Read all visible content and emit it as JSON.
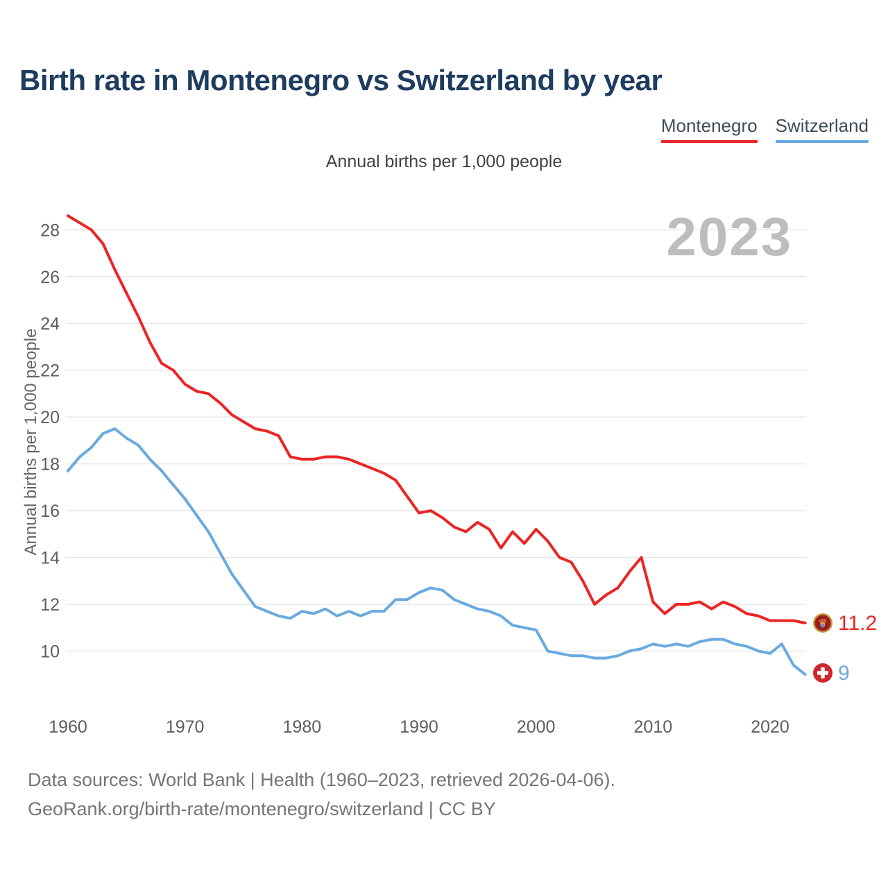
{
  "title": "Birth rate in Montenegro vs Switzerland by year",
  "subtitle": "Annual births per 1,000 people",
  "watermark": "2023",
  "legend": {
    "items": [
      {
        "label": "Montenegro",
        "color": "#ec2424"
      },
      {
        "label": "Switzerland",
        "color": "#6aaade"
      }
    ]
  },
  "y_axis": {
    "title": "Annual births per 1,000 people",
    "ticks": [
      10,
      12,
      14,
      16,
      18,
      20,
      22,
      24,
      26,
      28
    ]
  },
  "x_axis": {
    "ticks": [
      1960,
      1970,
      1980,
      1990,
      2000,
      2010,
      2020
    ]
  },
  "end_labels": {
    "montenegro": "11.2",
    "switzerland": "9"
  },
  "footer": {
    "line1": "Data sources: World Bank | Health (1960–2023, retrieved 2026-04-06).",
    "line2": "GeoRank.org/birth-rate/montenegro/switzerland | CC BY"
  },
  "colors": {
    "montenegro_line": "#ec2424",
    "switzerland_line": "#6aaade",
    "title_text": "#1d3c5e",
    "grid": "#e7e7e7",
    "watermark": "#bdbdbd",
    "montenegro_flag_gold": "#c79b3b",
    "montenegro_flag_red": "#9d1b23",
    "swiss_flag_red": "#d0262e"
  },
  "chart_data": {
    "type": "line",
    "title": "Birth rate in Montenegro vs Switzerland by year",
    "subtitle": "Annual births per 1,000 people",
    "xlabel": "",
    "ylabel": "Annual births per 1,000 people",
    "xlim": [
      1960,
      2023
    ],
    "ylim": [
      10,
      28
    ],
    "grid": true,
    "legend_position": "top-right",
    "x": [
      1960,
      1961,
      1962,
      1963,
      1964,
      1965,
      1966,
      1967,
      1968,
      1969,
      1970,
      1971,
      1972,
      1973,
      1974,
      1975,
      1976,
      1977,
      1978,
      1979,
      1980,
      1981,
      1982,
      1983,
      1984,
      1985,
      1986,
      1987,
      1988,
      1989,
      1990,
      1991,
      1992,
      1993,
      1994,
      1995,
      1996,
      1997,
      1998,
      1999,
      2000,
      2001,
      2002,
      2003,
      2004,
      2005,
      2006,
      2007,
      2008,
      2009,
      2010,
      2011,
      2012,
      2013,
      2014,
      2015,
      2016,
      2017,
      2018,
      2019,
      2020,
      2021,
      2022,
      2023
    ],
    "series": [
      {
        "name": "Montenegro",
        "color": "#ec2424",
        "end_value_label": "11.2",
        "values": [
          28.6,
          28.3,
          28.0,
          27.4,
          26.3,
          25.3,
          24.3,
          23.2,
          22.3,
          22.0,
          21.4,
          21.1,
          21.0,
          20.6,
          20.1,
          19.8,
          19.5,
          19.4,
          19.2,
          18.3,
          18.2,
          18.2,
          18.3,
          18.3,
          18.2,
          18.0,
          17.8,
          17.6,
          17.3,
          16.6,
          15.9,
          16.0,
          15.7,
          15.3,
          15.1,
          15.5,
          15.2,
          14.4,
          15.1,
          14.6,
          15.2,
          14.7,
          14.0,
          13.8,
          13.0,
          12.0,
          12.4,
          12.7,
          13.4,
          14.0,
          12.1,
          11.6,
          12.0,
          12.0,
          12.1,
          11.8,
          12.1,
          11.9,
          11.6,
          11.5,
          11.3,
          11.3,
          11.3,
          11.2
        ]
      },
      {
        "name": "Switzerland",
        "color": "#6aaade",
        "end_value_label": "9",
        "values": [
          17.7,
          18.3,
          18.7,
          19.3,
          19.5,
          19.1,
          18.8,
          18.2,
          17.7,
          17.1,
          16.5,
          15.8,
          15.1,
          14.2,
          13.3,
          12.6,
          11.9,
          11.7,
          11.5,
          11.4,
          11.7,
          11.6,
          11.8,
          11.5,
          11.7,
          11.5,
          11.7,
          11.7,
          12.2,
          12.2,
          12.5,
          12.7,
          12.6,
          12.2,
          12.0,
          11.8,
          11.7,
          11.5,
          11.1,
          11.0,
          10.9,
          10.0,
          9.9,
          9.8,
          9.8,
          9.7,
          9.7,
          9.8,
          10.0,
          10.1,
          10.3,
          10.2,
          10.3,
          10.2,
          10.4,
          10.5,
          10.5,
          10.3,
          10.2,
          10.0,
          9.9,
          10.3,
          9.4,
          9.0
        ]
      }
    ]
  }
}
